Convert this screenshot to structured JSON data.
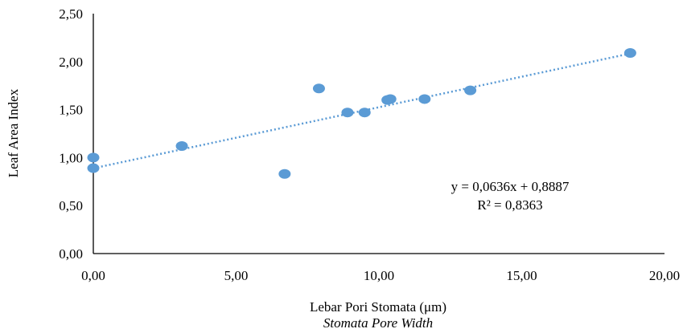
{
  "chart_data": {
    "type": "scatter",
    "title": "",
    "xlabel": "Lebar Pori Stomata (μm)",
    "xlabel_sub": "Stomata Pore Width",
    "ylabel": "Leaf Area Index",
    "xlim": [
      0,
      20
    ],
    "ylim": [
      0,
      2.5
    ],
    "x_ticks": [
      "0,00",
      "5,00",
      "10,00",
      "15,00",
      "20,00"
    ],
    "y_ticks": [
      "0,00",
      "0,50",
      "1,00",
      "1,50",
      "2,00",
      "2,50"
    ],
    "grid": false,
    "legend": "none",
    "series": [
      {
        "color": "#5b9bd5",
        "points": [
          [
            0.0,
            1.0
          ],
          [
            0.0,
            0.89
          ],
          [
            3.1,
            1.12
          ],
          [
            6.7,
            0.83
          ],
          [
            7.9,
            1.72
          ],
          [
            8.9,
            1.47
          ],
          [
            9.5,
            1.47
          ],
          [
            10.3,
            1.6
          ],
          [
            10.4,
            1.61
          ],
          [
            11.6,
            1.61
          ],
          [
            13.2,
            1.7
          ],
          [
            18.8,
            2.09
          ]
        ]
      }
    ],
    "trendline": {
      "type": "linear",
      "slope": 0.0636,
      "intercept": 0.8887,
      "x_range": [
        0,
        18.8
      ],
      "style": "dotted",
      "equation_label": "y = 0,0636x + 0,8887",
      "r2_label": "R² = 0,8363"
    }
  }
}
